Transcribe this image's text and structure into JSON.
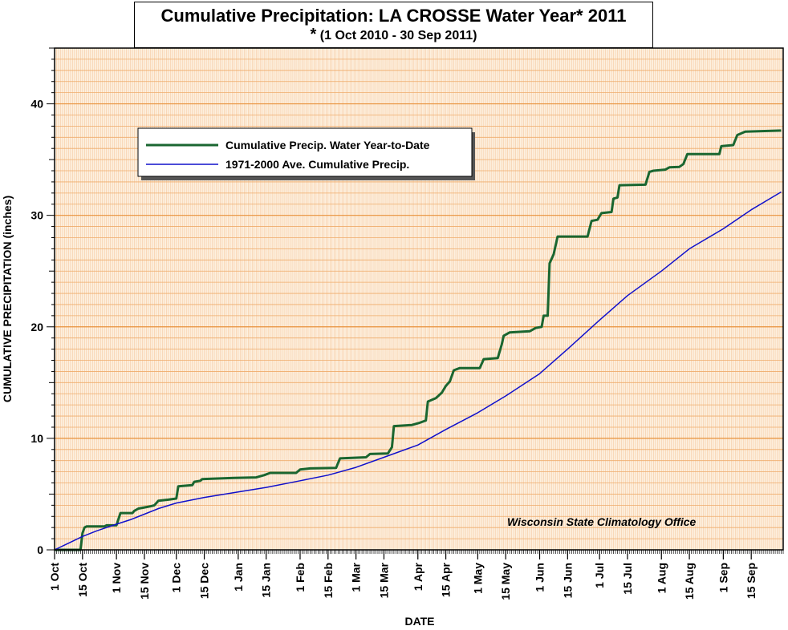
{
  "chart_data": {
    "type": "line",
    "title": "Cumulative Precipitation: LA CROSSE Water Year* 2011",
    "subtitle": "(1 Oct 2010 - 30 Sep 2011)",
    "subtitle_marker": "*",
    "xlabel": "DATE",
    "ylabel": "CUMULATIVE PRECIPITATION (inches)",
    "credit": "Wisconsin State Climatology Office",
    "xlim": [
      "2010-10-01",
      "2011-09-30"
    ],
    "ylim": [
      0,
      45
    ],
    "y_major_ticks": [
      0,
      10,
      20,
      30,
      40
    ],
    "y_minor_step": 1,
    "x_ticks": [
      {
        "date": "2010-10-01",
        "label": "1 Oct"
      },
      {
        "date": "2010-10-15",
        "label": "15 Oct"
      },
      {
        "date": "2010-11-01",
        "label": "1 Nov"
      },
      {
        "date": "2010-11-15",
        "label": "15 Nov"
      },
      {
        "date": "2010-12-01",
        "label": "1 Dec"
      },
      {
        "date": "2010-12-15",
        "label": "15 Dec"
      },
      {
        "date": "2011-01-01",
        "label": "1 Jan"
      },
      {
        "date": "2011-01-15",
        "label": "15 Jan"
      },
      {
        "date": "2011-02-01",
        "label": "1 Feb"
      },
      {
        "date": "2011-02-15",
        "label": "15 Feb"
      },
      {
        "date": "2011-03-01",
        "label": "1 Mar"
      },
      {
        "date": "2011-03-15",
        "label": "15 Mar"
      },
      {
        "date": "2011-04-01",
        "label": "1 Apr"
      },
      {
        "date": "2011-04-15",
        "label": "15 Apr"
      },
      {
        "date": "2011-05-01",
        "label": "1 May"
      },
      {
        "date": "2011-05-15",
        "label": "15 May"
      },
      {
        "date": "2011-06-01",
        "label": "1 Jun"
      },
      {
        "date": "2011-06-15",
        "label": "15 Jun"
      },
      {
        "date": "2011-07-01",
        "label": "1 Jul"
      },
      {
        "date": "2011-07-15",
        "label": "15 Jul"
      },
      {
        "date": "2011-08-01",
        "label": "1 Aug"
      },
      {
        "date": "2011-08-15",
        "label": "15 Aug"
      },
      {
        "date": "2011-09-01",
        "label": "1 Sep"
      },
      {
        "date": "2011-09-15",
        "label": "15 Sep"
      }
    ],
    "grid": true,
    "legend_position": "top-left",
    "series": [
      {
        "name": "Cumulative Precip.  Water Year-to-Date",
        "color": "#1a6630",
        "points": [
          [
            "2010-10-01",
            0.0
          ],
          [
            "2010-10-14",
            0.0
          ],
          [
            "2010-10-15",
            1.5
          ],
          [
            "2010-10-16",
            2.0
          ],
          [
            "2010-10-17",
            2.1
          ],
          [
            "2010-10-26",
            2.1
          ],
          [
            "2010-10-27",
            2.2
          ],
          [
            "2010-11-01",
            2.2
          ],
          [
            "2010-11-03",
            3.3
          ],
          [
            "2010-11-09",
            3.3
          ],
          [
            "2010-11-10",
            3.5
          ],
          [
            "2010-11-12",
            3.7
          ],
          [
            "2010-11-15",
            3.8
          ],
          [
            "2010-11-18",
            3.9
          ],
          [
            "2010-11-20",
            4.0
          ],
          [
            "2010-11-22",
            4.4
          ],
          [
            "2010-11-27",
            4.5
          ],
          [
            "2010-12-01",
            4.6
          ],
          [
            "2010-12-02",
            5.7
          ],
          [
            "2010-12-09",
            5.8
          ],
          [
            "2010-12-10",
            6.1
          ],
          [
            "2010-12-13",
            6.2
          ],
          [
            "2010-12-14",
            6.35
          ],
          [
            "2010-12-30",
            6.45
          ],
          [
            "2011-01-10",
            6.5
          ],
          [
            "2011-01-14",
            6.7
          ],
          [
            "2011-01-17",
            6.9
          ],
          [
            "2011-01-30",
            6.9
          ],
          [
            "2011-02-01",
            7.2
          ],
          [
            "2011-02-06",
            7.3
          ],
          [
            "2011-02-19",
            7.35
          ],
          [
            "2011-02-21",
            8.2
          ],
          [
            "2011-03-06",
            8.3
          ],
          [
            "2011-03-08",
            8.6
          ],
          [
            "2011-03-17",
            8.65
          ],
          [
            "2011-03-19",
            9.2
          ],
          [
            "2011-03-20",
            11.1
          ],
          [
            "2011-03-29",
            11.2
          ],
          [
            "2011-04-02",
            11.4
          ],
          [
            "2011-04-05",
            11.6
          ],
          [
            "2011-04-06",
            13.3
          ],
          [
            "2011-04-10",
            13.6
          ],
          [
            "2011-04-13",
            14.1
          ],
          [
            "2011-04-15",
            14.7
          ],
          [
            "2011-04-17",
            15.1
          ],
          [
            "2011-04-19",
            16.1
          ],
          [
            "2011-04-22",
            16.3
          ],
          [
            "2011-05-02",
            16.3
          ],
          [
            "2011-05-04",
            17.1
          ],
          [
            "2011-05-11",
            17.2
          ],
          [
            "2011-05-13",
            18.4
          ],
          [
            "2011-05-14",
            19.2
          ],
          [
            "2011-05-17",
            19.5
          ],
          [
            "2011-05-27",
            19.6
          ],
          [
            "2011-05-30",
            19.9
          ],
          [
            "2011-06-02",
            20.0
          ],
          [
            "2011-06-03",
            21.0
          ],
          [
            "2011-06-05",
            21.0
          ],
          [
            "2011-06-06",
            25.7
          ],
          [
            "2011-06-08",
            26.5
          ],
          [
            "2011-06-10",
            28.1
          ],
          [
            "2011-06-25",
            28.1
          ],
          [
            "2011-06-27",
            29.5
          ],
          [
            "2011-06-30",
            29.6
          ],
          [
            "2011-07-02",
            30.2
          ],
          [
            "2011-07-07",
            30.3
          ],
          [
            "2011-07-08",
            31.5
          ],
          [
            "2011-07-10",
            31.6
          ],
          [
            "2011-07-11",
            32.7
          ],
          [
            "2011-07-24",
            32.75
          ],
          [
            "2011-07-26",
            33.9
          ],
          [
            "2011-07-28",
            34.0
          ],
          [
            "2011-08-03",
            34.1
          ],
          [
            "2011-08-05",
            34.3
          ],
          [
            "2011-08-10",
            34.35
          ],
          [
            "2011-08-12",
            34.6
          ],
          [
            "2011-08-14",
            35.5
          ],
          [
            "2011-08-30",
            35.5
          ],
          [
            "2011-08-31",
            36.2
          ],
          [
            "2011-09-06",
            36.3
          ],
          [
            "2011-09-08",
            37.2
          ],
          [
            "2011-09-12",
            37.5
          ],
          [
            "2011-09-30",
            37.6
          ]
        ]
      },
      {
        "name": "1971-2000 Ave. Cumulative Precip.",
        "color": "#1010cc",
        "points": [
          [
            "2010-10-01",
            0.0
          ],
          [
            "2010-10-08",
            0.6
          ],
          [
            "2010-10-15",
            1.2
          ],
          [
            "2010-10-22",
            1.7
          ],
          [
            "2010-11-01",
            2.3
          ],
          [
            "2010-11-08",
            2.7
          ],
          [
            "2010-11-15",
            3.2
          ],
          [
            "2010-11-22",
            3.7
          ],
          [
            "2010-12-01",
            4.2
          ],
          [
            "2010-12-15",
            4.7
          ],
          [
            "2011-01-01",
            5.2
          ],
          [
            "2011-01-15",
            5.6
          ],
          [
            "2011-02-01",
            6.2
          ],
          [
            "2011-02-15",
            6.7
          ],
          [
            "2011-03-01",
            7.4
          ],
          [
            "2011-03-15",
            8.3
          ],
          [
            "2011-04-01",
            9.4
          ],
          [
            "2011-04-15",
            10.8
          ],
          [
            "2011-05-01",
            12.3
          ],
          [
            "2011-05-15",
            13.8
          ],
          [
            "2011-06-01",
            15.8
          ],
          [
            "2011-06-15",
            18.0
          ],
          [
            "2011-07-01",
            20.6
          ],
          [
            "2011-07-15",
            22.8
          ],
          [
            "2011-08-01",
            25.0
          ],
          [
            "2011-08-15",
            27.0
          ],
          [
            "2011-09-01",
            28.8
          ],
          [
            "2011-09-15",
            30.5
          ],
          [
            "2011-09-30",
            32.1
          ]
        ]
      }
    ]
  }
}
